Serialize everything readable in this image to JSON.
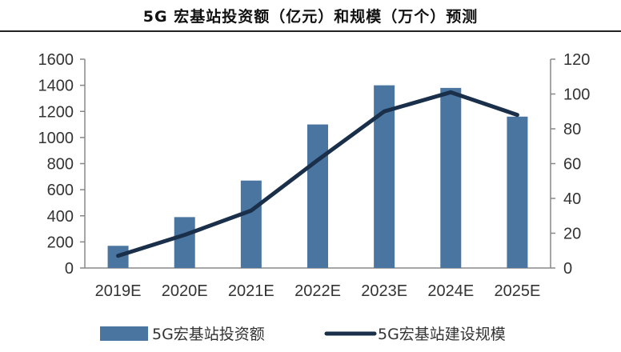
{
  "chart_data": {
    "type": "bar",
    "title": "5G 宏基站投资额（亿元）和规模（万个）预测",
    "categories": [
      "2019E",
      "2020E",
      "2021E",
      "2022E",
      "2023E",
      "2024E",
      "2025E"
    ],
    "series": [
      {
        "name": "5G宏基站投资额",
        "type": "bar",
        "axis": "left",
        "values": [
          170,
          390,
          670,
          1100,
          1400,
          1380,
          1160
        ]
      },
      {
        "name": "5G宏基站建设规模",
        "type": "line",
        "axis": "right",
        "values": [
          7,
          19,
          33,
          62,
          90,
          101,
          88
        ]
      }
    ],
    "y_left": {
      "ylim": [
        0,
        1600
      ],
      "ticks": [
        "0",
        "200",
        "400",
        "600",
        "800",
        "1000",
        "1200",
        "1400",
        "1600"
      ]
    },
    "y_right": {
      "ylim": [
        0,
        120
      ],
      "ticks": [
        "0",
        "20",
        "40",
        "60",
        "80",
        "100",
        "120"
      ]
    },
    "colors": {
      "bar": "#4a75a0",
      "line": "#1a2f4a"
    },
    "legend_position": "bottom"
  }
}
